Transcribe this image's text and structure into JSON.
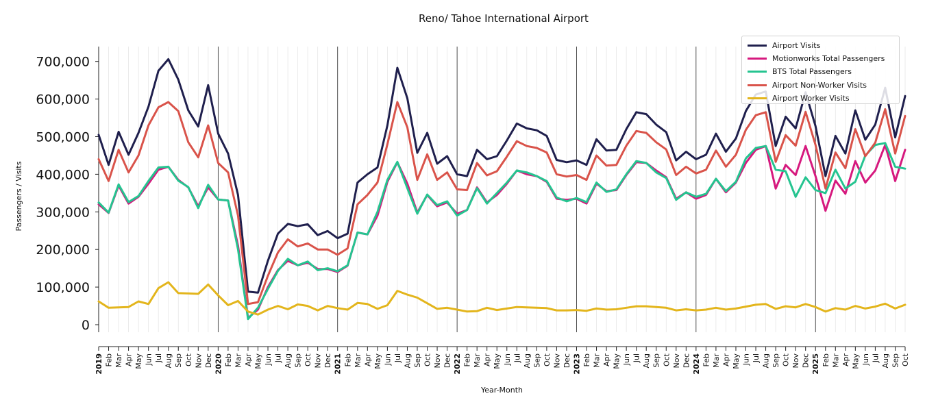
{
  "chart_data": {
    "type": "line",
    "title": "Reno/ Tahoe International Airport",
    "xlabel": "Year-Month",
    "ylabel": "Passengers / Visits",
    "ylim": [
      -30000,
      740000
    ],
    "y_ticks": [
      0,
      100000,
      200000,
      300000,
      400000,
      500000,
      600000,
      700000
    ],
    "y_tick_labels": [
      "0",
      "100,000",
      "200,000",
      "300,000",
      "400,000",
      "500,000",
      "600,000",
      "700,000"
    ],
    "year_labels": [
      "2019",
      "2020",
      "2021",
      "2022",
      "2023",
      "2024",
      "2025"
    ],
    "x_ticks": [
      "2019",
      "Feb",
      "Mar",
      "Apr",
      "May",
      "Jun",
      "Jul",
      "Aug",
      "Sep",
      "Oct",
      "Nov",
      "Dec",
      "2020",
      "Feb",
      "Mar",
      "Apr",
      "May",
      "Jun",
      "Jul",
      "Aug",
      "Sep",
      "Oct",
      "Nov",
      "Dec",
      "2021",
      "Feb",
      "Mar",
      "Apr",
      "May",
      "Jun",
      "Jul",
      "Aug",
      "Sep",
      "Oct",
      "Nov",
      "Dec",
      "2022",
      "Feb",
      "Mar",
      "Apr",
      "May",
      "Jun",
      "Jul",
      "Aug",
      "Sep",
      "Oct",
      "Nov",
      "Dec",
      "2023",
      "Feb",
      "Mar",
      "Apr",
      "May",
      "Jun",
      "Jul",
      "Aug",
      "Sep",
      "Oct",
      "Nov",
      "Dec",
      "2024",
      "Feb",
      "Mar",
      "Apr",
      "May",
      "Jun",
      "Jul",
      "Aug",
      "Sep",
      "Oct",
      "Nov",
      "Dec",
      "2025",
      "Feb",
      "Mar",
      "Apr",
      "May",
      "Jun",
      "Jul",
      "Aug",
      "Sep",
      "Oct"
    ],
    "grid": "vertical monthly",
    "legend_position": "top-right",
    "series": [
      {
        "name": "Airport Visits",
        "color": "#1f1f4d",
        "values": [
          505000,
          425000,
          513000,
          452000,
          510000,
          580000,
          675000,
          706000,
          652000,
          570000,
          527000,
          637000,
          508000,
          455000,
          345000,
          88000,
          85000,
          170000,
          242000,
          268000,
          262000,
          267000,
          238000,
          249000,
          230000,
          242000,
          378000,
          400000,
          418000,
          530000,
          683000,
          602000,
          457000,
          510000,
          428000,
          448000,
          400000,
          395000,
          465000,
          440000,
          448000,
          490000,
          535000,
          522000,
          517000,
          502000,
          438000,
          432000,
          437000,
          425000,
          493000,
          463000,
          465000,
          520000,
          565000,
          560000,
          532000,
          512000,
          437000,
          460000,
          440000,
          452000,
          508000,
          460000,
          495000,
          568000,
          612000,
          620000,
          475000,
          553000,
          522000,
          618000,
          528000,
          395000,
          502000,
          455000,
          570000,
          492000,
          532000,
          630000,
          498000,
          608000
        ]
      },
      {
        "name": "Motionworks Total Passengers",
        "color": "#d6197e",
        "values": [
          320000,
          297000,
          370000,
          322000,
          340000,
          375000,
          412000,
          420000,
          385000,
          365000,
          315000,
          365000,
          333000,
          330000,
          210000,
          18000,
          40000,
          100000,
          145000,
          170000,
          158000,
          165000,
          148000,
          148000,
          140000,
          157000,
          245000,
          240000,
          290000,
          380000,
          432000,
          375000,
          298000,
          345000,
          315000,
          325000,
          295000,
          305000,
          365000,
          325000,
          345000,
          375000,
          410000,
          400000,
          395000,
          380000,
          335000,
          332000,
          335000,
          322000,
          375000,
          355000,
          358000,
          398000,
          432000,
          430000,
          410000,
          392000,
          335000,
          352000,
          335000,
          345000,
          388000,
          352000,
          378000,
          430000,
          465000,
          475000,
          362000,
          425000,
          398000,
          475000,
          395000,
          303000,
          383000,
          348000,
          435000,
          378000,
          410000,
          478000,
          382000,
          465000
        ]
      },
      {
        "name": "BTS Total Passengers",
        "color": "#25c490",
        "values": [
          325000,
          298000,
          373000,
          326000,
          342000,
          382000,
          418000,
          420000,
          383000,
          366000,
          310000,
          372000,
          333000,
          330000,
          200000,
          15000,
          45000,
          95000,
          143000,
          175000,
          158000,
          168000,
          145000,
          150000,
          142000,
          158000,
          245000,
          240000,
          300000,
          385000,
          433000,
          363000,
          295000,
          346000,
          318000,
          328000,
          290000,
          305000,
          363000,
          322000,
          350000,
          378000,
          410000,
          405000,
          395000,
          382000,
          338000,
          328000,
          337000,
          326000,
          378000,
          353000,
          360000,
          400000,
          435000,
          430000,
          405000,
          390000,
          332000,
          352000,
          340000,
          348000,
          388000,
          355000,
          380000,
          442000,
          470000,
          475000,
          412000,
          408000,
          340000,
          392000,
          358000,
          350000,
          412000,
          362000,
          380000,
          450000,
          478000,
          483000,
          420000,
          415000
        ]
      },
      {
        "name": "Airport Non-Worker Visits",
        "color": "#d9534a",
        "values": [
          440000,
          382000,
          465000,
          405000,
          450000,
          530000,
          578000,
          592000,
          568000,
          485000,
          445000,
          530000,
          430000,
          405000,
          290000,
          55000,
          60000,
          130000,
          192000,
          227000,
          208000,
          216000,
          200000,
          200000,
          186000,
          203000,
          320000,
          345000,
          378000,
          480000,
          592000,
          525000,
          385000,
          453000,
          385000,
          405000,
          360000,
          358000,
          430000,
          397000,
          408000,
          447000,
          488000,
          475000,
          470000,
          458000,
          400000,
          394000,
          398000,
          385000,
          450000,
          423000,
          425000,
          476000,
          515000,
          510000,
          485000,
          466000,
          398000,
          420000,
          402000,
          412000,
          463000,
          420000,
          452000,
          518000,
          557000,
          565000,
          433000,
          504000,
          476000,
          566000,
          478000,
          362000,
          458000,
          416000,
          520000,
          448000,
          484000,
          573000,
          455000,
          555000
        ]
      },
      {
        "name": "Airport Worker Visits",
        "color": "#e3b51c",
        "values": [
          62000,
          45000,
          46000,
          47000,
          62000,
          55000,
          97000,
          113000,
          84000,
          83000,
          82000,
          107000,
          78000,
          52000,
          63000,
          35000,
          27000,
          40000,
          50000,
          41000,
          54000,
          50000,
          38000,
          50000,
          44000,
          40000,
          58000,
          55000,
          42000,
          52000,
          90000,
          80000,
          72000,
          57000,
          42000,
          45000,
          40000,
          35000,
          36000,
          45000,
          39000,
          43000,
          47000,
          46000,
          45000,
          44000,
          38000,
          38000,
          39000,
          37000,
          43000,
          40000,
          41000,
          45000,
          49000,
          49000,
          47000,
          45000,
          38000,
          41000,
          38000,
          40000,
          45000,
          40000,
          43000,
          48000,
          53000,
          55000,
          42000,
          49000,
          46000,
          55000,
          47000,
          35000,
          44000,
          40000,
          50000,
          43000,
          48000,
          56000,
          43000,
          53000
        ]
      }
    ]
  }
}
